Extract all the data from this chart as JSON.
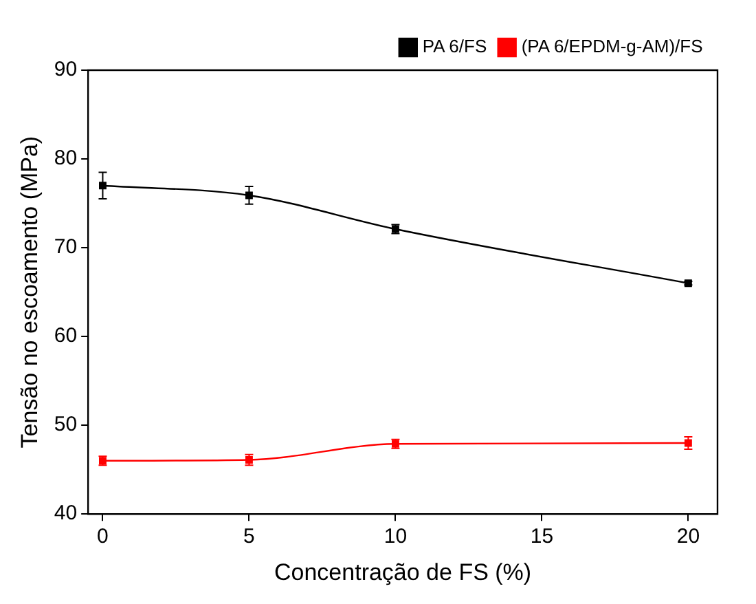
{
  "chart_data": {
    "type": "line",
    "xlabel": "Concentração de FS (%)",
    "ylabel": "Tensão no escoamento (MPa)",
    "x": [
      0,
      5,
      10,
      20
    ],
    "series": [
      {
        "name": "PA 6/FS",
        "color": "#000000",
        "values": [
          77,
          75.9,
          72.1,
          66
        ],
        "errors": [
          1.5,
          1,
          0.5,
          0.2
        ]
      },
      {
        "name": "(PA 6/EPDM-g-AM)/FS",
        "color": "#ff0000",
        "values": [
          46,
          46.1,
          47.9,
          48
        ],
        "errors": [
          0.5,
          0.6,
          0.5,
          0.7
        ]
      }
    ],
    "xlim": [
      -0.5,
      21
    ],
    "xticks": [
      0,
      5,
      10,
      15,
      20
    ],
    "ylim": [
      40,
      90
    ],
    "yticks": [
      40,
      50,
      60,
      70,
      80,
      90
    ],
    "grid": false,
    "legend": "top right",
    "marker": "square",
    "line_style": "solid"
  }
}
